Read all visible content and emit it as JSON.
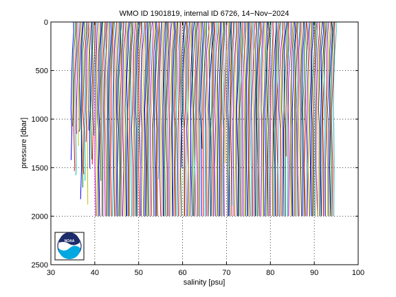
{
  "chart_data": {
    "type": "line",
    "title": "WMO ID 1901819, internal ID 6726, 14−Nov−2024",
    "xlabel": "salinity [psu]",
    "ylabel": "pressure [dbar]",
    "xlim": [
      30,
      100
    ],
    "ylim": [
      0,
      2500
    ],
    "y_reversed": true,
    "xticks": [
      "30",
      "40",
      "50",
      "60",
      "70",
      "80",
      "90",
      "100"
    ],
    "yticks": [
      "0",
      "500",
      "1000",
      "1500",
      "2000",
      "2500"
    ],
    "grid": "dotted",
    "profile_count": 200,
    "profile_offset_step": 0.3,
    "first_profile_surface_salinity": 35.3,
    "profile_max_pressure": 2000,
    "series_colors": [
      "#0000ff",
      "#008000",
      "#ff0000",
      "#00bfbf",
      "#bf00bf",
      "#bfbf00",
      "#404040"
    ],
    "logo": "noaa-logo",
    "logo_text": "NOAA"
  }
}
